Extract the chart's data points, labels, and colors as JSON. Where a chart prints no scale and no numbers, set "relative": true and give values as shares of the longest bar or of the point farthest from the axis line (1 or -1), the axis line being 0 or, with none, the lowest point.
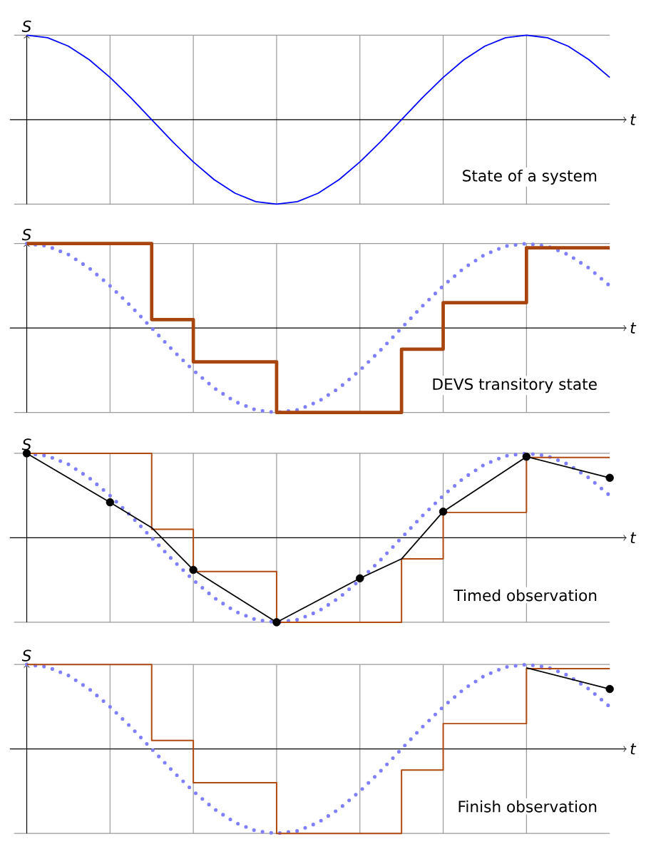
{
  "chart_data": [
    {
      "type": "line",
      "relative": true,
      "xlabel": "t",
      "ylabel": "S",
      "grid": "x",
      "categories": [
        null,
        null,
        null,
        null,
        null,
        null,
        null,
        null,
        null,
        null,
        null,
        null,
        null,
        null,
        null,
        null,
        null,
        null,
        null,
        null,
        null,
        null,
        null,
        null,
        null,
        null,
        null,
        null,
        null
      ],
      "annotations": [
        "State of a system"
      ],
      "series": [
        {
          "color": "#0000ff",
          "line_style": "solid",
          "values": [
            1,
            0.97,
            0.87,
            0.71,
            0.5,
            0.26,
            0,
            -0.26,
            -0.5,
            -0.71,
            -0.87,
            -0.97,
            -1,
            -0.97,
            -0.87,
            -0.71,
            -0.5,
            -0.26,
            0,
            0.26,
            0.5,
            0.71,
            0.87,
            0.97,
            1,
            0.97,
            0.87,
            0.71,
            0.5
          ]
        }
      ]
    },
    {
      "type": "line",
      "relative": true,
      "xlabel": "t",
      "ylabel": "S",
      "grid": "x",
      "categories": [
        null,
        null,
        null,
        null,
        null,
        null,
        null,
        null,
        null,
        null,
        null,
        null,
        null,
        null,
        null,
        null,
        null,
        null,
        null,
        null,
        null,
        null,
        null,
        null,
        null,
        null,
        null,
        null,
        null
      ],
      "annotations": [
        "DEVS transitory state"
      ],
      "series": [
        {
          "color": "#8080ff",
          "line_style": "dotted",
          "values": [
            1,
            0.97,
            0.87,
            0.71,
            0.5,
            0.26,
            0,
            -0.26,
            -0.5,
            -0.71,
            -0.87,
            -0.97,
            -1,
            -0.97,
            -0.87,
            -0.71,
            -0.5,
            -0.26,
            0,
            0.26,
            0.5,
            0.71,
            0.87,
            0.97,
            1,
            0.97,
            0.87,
            0.71,
            0.5
          ]
        },
        {
          "type": "step",
          "color": "#a8450f",
          "values": [
            1,
            null,
            null,
            null,
            null,
            null,
            0.1,
            null,
            -0.4,
            null,
            null,
            null,
            -1,
            null,
            null,
            null,
            null,
            null,
            -0.25,
            null,
            0.3,
            null,
            null,
            null,
            0.95,
            null,
            null,
            null,
            0.95
          ]
        }
      ]
    },
    {
      "type": "line",
      "relative": true,
      "xlabel": "t",
      "ylabel": "S",
      "grid": "x",
      "categories": [
        null,
        null,
        null,
        null,
        null,
        null,
        null,
        null,
        null,
        null,
        null,
        null,
        null,
        null,
        null,
        null,
        null,
        null,
        null,
        null,
        null,
        null,
        null,
        null,
        null,
        null,
        null,
        null,
        null
      ],
      "annotations": [
        "Timed observation"
      ],
      "series": [
        {
          "color": "#8080ff",
          "line_style": "dotted",
          "values": [
            1,
            0.97,
            0.87,
            0.71,
            0.5,
            0.26,
            0,
            -0.26,
            -0.5,
            -0.71,
            -0.87,
            -0.97,
            -1,
            -0.97,
            -0.87,
            -0.71,
            -0.5,
            -0.26,
            0,
            0.26,
            0.5,
            0.71,
            0.87,
            0.97,
            1,
            0.97,
            0.87,
            0.71,
            0.5
          ]
        },
        {
          "type": "step",
          "color": "#b04a10",
          "values": [
            1,
            null,
            null,
            null,
            null,
            null,
            0.1,
            null,
            -0.4,
            null,
            null,
            null,
            -1,
            null,
            null,
            null,
            null,
            null,
            -0.25,
            null,
            0.3,
            null,
            null,
            null,
            0.95,
            null,
            null,
            null,
            0.95
          ]
        },
        {
          "color": "#000000",
          "line_style": "solid",
          "values": [
            1,
            null,
            null,
            null,
            0.42,
            null,
            0.12,
            null,
            -0.38,
            null,
            null,
            null,
            -1,
            null,
            null,
            null,
            -0.48,
            null,
            -0.25,
            null,
            0.31,
            null,
            null,
            null,
            0.96,
            null,
            null,
            null,
            0.71
          ]
        },
        {
          "type": "scatter",
          "color": "#000000",
          "marker": "circle",
          "values": [
            1,
            null,
            null,
            null,
            0.42,
            null,
            null,
            null,
            -0.38,
            null,
            null,
            null,
            -1,
            null,
            null,
            null,
            -0.48,
            null,
            null,
            null,
            0.31,
            null,
            null,
            null,
            0.96,
            null,
            null,
            null,
            0.71
          ]
        }
      ]
    },
    {
      "type": "line",
      "relative": true,
      "xlabel": "t",
      "ylabel": "S",
      "grid": "x",
      "categories": [
        null,
        null,
        null,
        null,
        null,
        null,
        null,
        null,
        null,
        null,
        null,
        null,
        null,
        null,
        null,
        null,
        null,
        null,
        null,
        null,
        null,
        null,
        null,
        null,
        null,
        null,
        null,
        null,
        null
      ],
      "annotations": [
        "Finish observation"
      ],
      "series": [
        {
          "color": "#8080ff",
          "line_style": "dotted",
          "values": [
            1,
            0.97,
            0.87,
            0.71,
            0.5,
            0.26,
            0,
            -0.26,
            -0.5,
            -0.71,
            -0.87,
            -0.97,
            -1,
            -0.97,
            -0.87,
            -0.71,
            -0.5,
            -0.26,
            0,
            0.26,
            0.5,
            0.71,
            0.87,
            0.97,
            1,
            0.97,
            0.87,
            0.71,
            0.5
          ]
        },
        {
          "type": "step",
          "color": "#b04a10",
          "values": [
            1,
            null,
            null,
            null,
            null,
            null,
            0.1,
            null,
            -0.4,
            null,
            null,
            null,
            -1,
            null,
            null,
            null,
            null,
            null,
            -0.25,
            null,
            0.3,
            null,
            null,
            null,
            0.95,
            null,
            null,
            null,
            0.95
          ]
        },
        {
          "color": "#000000",
          "line_style": "solid",
          "values": [
            null,
            null,
            null,
            null,
            null,
            null,
            null,
            null,
            null,
            null,
            null,
            null,
            null,
            null,
            null,
            null,
            null,
            null,
            null,
            null,
            null,
            null,
            null,
            null,
            0.96,
            null,
            null,
            null,
            0.71
          ]
        },
        {
          "type": "scatter",
          "color": "#000000",
          "marker": "circle",
          "values": [
            null,
            null,
            null,
            null,
            null,
            null,
            null,
            null,
            null,
            null,
            null,
            null,
            null,
            null,
            null,
            null,
            null,
            null,
            null,
            null,
            null,
            null,
            null,
            null,
            null,
            null,
            null,
            null,
            0.71
          ]
        }
      ]
    }
  ]
}
